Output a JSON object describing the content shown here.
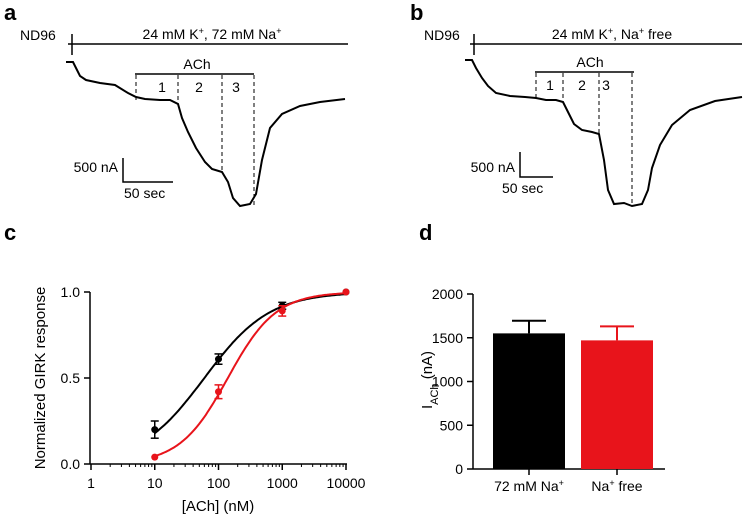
{
  "panels": {
    "a": {
      "letter": "a",
      "baseline_label": "ND96",
      "solution_label": "24 mM K+, 72 mM Na+",
      "ach_label": "ACh",
      "steps": [
        "1",
        "2",
        "3"
      ],
      "scale_y": "500 nA",
      "scale_x": "50 sec"
    },
    "b": {
      "letter": "b",
      "baseline_label": "ND96",
      "solution_label": "24 mM K+, Na+ free",
      "ach_label": "ACh",
      "steps": [
        "1",
        "2",
        "3"
      ],
      "scale_y": "500 nA",
      "scale_x": "50 sec"
    },
    "c": {
      "letter": "c"
    },
    "d": {
      "letter": "d"
    }
  },
  "colors": {
    "black": "#000000",
    "red": "#e8141b"
  },
  "chart_data": [
    {
      "type": "scatter",
      "panel": "c",
      "xlabel": "[ACh] (nM)",
      "ylabel": "Normalized GIRK response",
      "xscale": "log",
      "xlim": [
        1,
        10000
      ],
      "ylim": [
        0,
        1.0
      ],
      "xticks": [
        "1",
        "10",
        "100",
        "1000",
        "10000"
      ],
      "yticks": [
        "0.0",
        "0.5",
        "1.0"
      ],
      "series": [
        {
          "color": "#000000",
          "x": [
            10,
            100,
            1000,
            10000
          ],
          "y": [
            0.2,
            0.61,
            0.92,
            1.0
          ],
          "err": [
            0.05,
            0.03,
            0.02,
            0
          ],
          "ec50": 60,
          "hill": 0.85
        },
        {
          "color": "#e8141b",
          "x": [
            10,
            100,
            1000,
            10000
          ],
          "y": [
            0.04,
            0.42,
            0.89,
            1.0
          ],
          "err": [
            0,
            0.04,
            0.03,
            0
          ],
          "ec50": 140,
          "hill": 1.15
        }
      ]
    },
    {
      "type": "bar",
      "panel": "d",
      "categories": [
        "72 mM Na+",
        "Na+ free"
      ],
      "values": [
        1550,
        1470
      ],
      "errors": [
        145,
        160
      ],
      "colors": [
        "#000000",
        "#e8141b"
      ],
      "ylabel": "IACh (nA)",
      "ylim": [
        0,
        2000
      ],
      "yticks": [
        "0",
        "500",
        "1000",
        "1500",
        "2000"
      ]
    }
  ]
}
